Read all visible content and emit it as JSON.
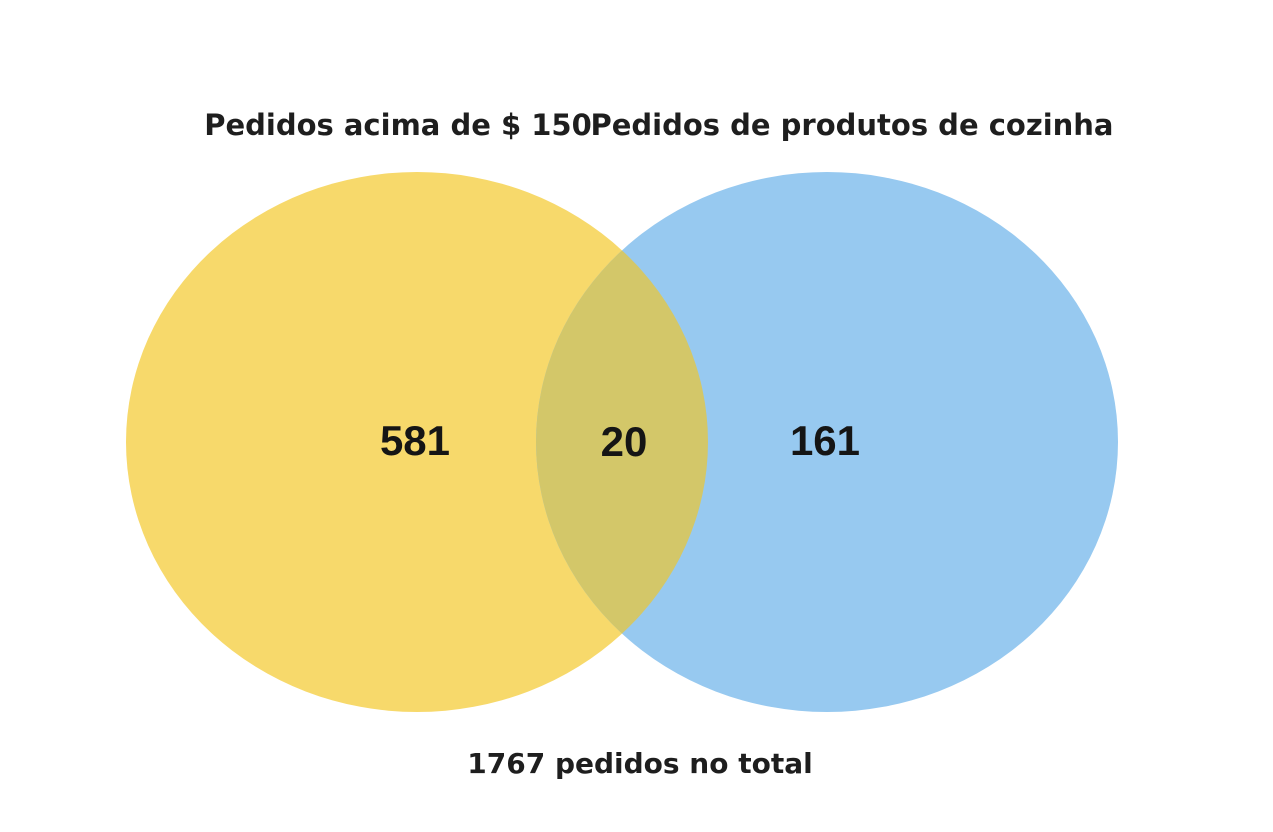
{
  "diagram": {
    "type": "venn",
    "sets": [
      {
        "id": "left",
        "label": "Pedidos acima de $ 150",
        "only_count": "581",
        "color": "#f7d96b"
      },
      {
        "id": "right",
        "label": "Pedidos de produtos de cozinha",
        "only_count": "161",
        "color": "#97c9f0"
      }
    ],
    "intersection": {
      "count": "20",
      "color": "#d3c769"
    },
    "total_label": "1767 pedidos no total"
  }
}
